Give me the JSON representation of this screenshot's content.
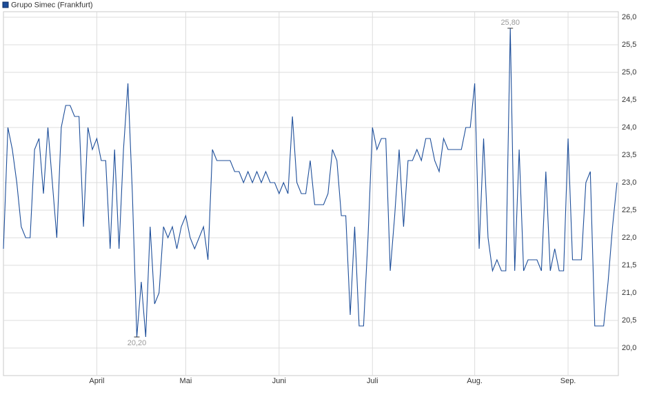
{
  "chart_data": {
    "type": "line",
    "series": [
      {
        "name": "Grupo Simec (Frankfurt)",
        "color": "#1c4d99",
        "values": [
          21.8,
          24.0,
          23.6,
          23.0,
          22.2,
          22.0,
          22.0,
          23.6,
          23.8,
          22.8,
          24.0,
          23.0,
          22.0,
          24.0,
          24.4,
          24.4,
          24.2,
          24.2,
          22.2,
          24.0,
          23.6,
          23.8,
          23.4,
          23.4,
          21.8,
          23.6,
          21.8,
          23.6,
          24.8,
          22.8,
          20.2,
          21.2,
          20.2,
          22.2,
          20.8,
          21.0,
          22.2,
          22.0,
          22.2,
          21.8,
          22.2,
          22.4,
          22.0,
          21.8,
          22.0,
          22.2,
          21.6,
          23.6,
          23.4,
          23.4,
          23.4,
          23.4,
          23.2,
          23.2,
          23.0,
          23.2,
          23.0,
          23.2,
          23.0,
          23.2,
          23.0,
          23.0,
          22.8,
          23.0,
          22.8,
          24.2,
          23.0,
          22.8,
          22.8,
          23.4,
          22.6,
          22.6,
          22.6,
          22.8,
          23.6,
          23.4,
          22.4,
          22.4,
          20.6,
          22.2,
          20.4,
          20.4,
          22.0,
          24.0,
          23.6,
          23.8,
          23.8,
          21.4,
          22.4,
          23.6,
          22.2,
          23.4,
          23.4,
          23.6,
          23.4,
          23.8,
          23.8,
          23.4,
          23.2,
          23.8,
          23.6,
          23.6,
          23.6,
          23.6,
          24.0,
          24.0,
          24.8,
          21.8,
          23.8,
          22.0,
          21.4,
          21.6,
          21.4,
          21.4,
          25.8,
          21.4,
          23.6,
          21.4,
          21.6,
          21.6,
          21.6,
          21.4,
          23.2,
          21.4,
          21.8,
          21.4,
          21.4,
          23.8,
          21.6,
          21.6,
          21.6,
          23.0,
          23.2,
          20.4,
          20.4,
          20.4,
          21.2,
          22.2,
          23.0
        ]
      }
    ],
    "categories": [
      null,
      null,
      null,
      null,
      null,
      null,
      null,
      null,
      null,
      null,
      null,
      null,
      null,
      null,
      null,
      null,
      null,
      null,
      null,
      null,
      null,
      "April",
      null,
      null,
      null,
      null,
      null,
      null,
      null,
      null,
      null,
      null,
      null,
      null,
      null,
      null,
      null,
      null,
      null,
      null,
      null,
      "Mai",
      null,
      null,
      null,
      null,
      null,
      null,
      null,
      null,
      null,
      null,
      null,
      null,
      null,
      null,
      null,
      null,
      null,
      null,
      null,
      null,
      "Juni",
      null,
      null,
      null,
      null,
      null,
      null,
      null,
      null,
      null,
      null,
      null,
      null,
      null,
      null,
      null,
      null,
      null,
      null,
      null,
      null,
      "Juli",
      null,
      null,
      null,
      null,
      null,
      null,
      null,
      null,
      null,
      null,
      null,
      null,
      null,
      null,
      null,
      null,
      null,
      null,
      null,
      null,
      null,
      null,
      "Aug.",
      null,
      null,
      null,
      null,
      null,
      null,
      null,
      null,
      null,
      null,
      null,
      null,
      null,
      null,
      null,
      null,
      null,
      null,
      null,
      null,
      "Sep.",
      null,
      null,
      null,
      null,
      null,
      null,
      null,
      null,
      null,
      null,
      null
    ],
    "annotations": {
      "high": "25,80",
      "low": "20,20"
    },
    "ylim": [
      19.5,
      26.1
    ],
    "yticks": [
      {
        "value": 20,
        "label": "20,0"
      },
      {
        "value": 20.5,
        "label": "20,5"
      },
      {
        "value": 21,
        "label": "21,0"
      },
      {
        "value": 21.5,
        "label": "21,5"
      },
      {
        "value": 22,
        "label": "22,0"
      },
      {
        "value": 22.5,
        "label": "22,5"
      },
      {
        "value": 23,
        "label": "23,0"
      },
      {
        "value": 23.5,
        "label": "23,5"
      },
      {
        "value": 24,
        "label": "24,0"
      },
      {
        "value": 24.5,
        "label": "24,5"
      },
      {
        "value": 25,
        "label": "25,0"
      },
      {
        "value": 25.5,
        "label": "25,5"
      },
      {
        "value": 26,
        "label": "26,0"
      }
    ],
    "grid": true
  }
}
